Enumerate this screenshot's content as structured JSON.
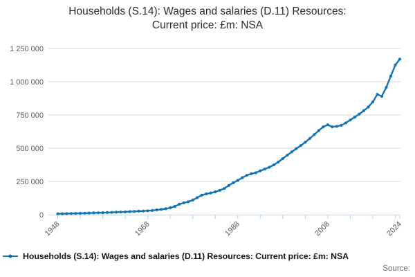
{
  "title_lines": [
    "Households (S.14): Wages and salaries (D.11) Resources:",
    "Current price: £m: NSA"
  ],
  "legend": {
    "label": "Households (S.14): Wages and salaries (D.11) Resources: Current price: £m: NSA",
    "marker": "line-dot"
  },
  "source": {
    "label": "Source:"
  },
  "colors": {
    "line": "#1274b6",
    "grid": "#d9d9d9",
    "axis": "#c2cfdd",
    "tick_label": "#595959",
    "title_text": "#2b2b2b",
    "legend_text": "#161616",
    "source_text": "#6e6e6e",
    "background": "#ffffff"
  },
  "chart_data": {
    "type": "line",
    "title": "Households (S.14): Wages and salaries (D.11) Resources: Current price: £m: NSA",
    "series_name": "Households (S.14): Wages and salaries (D.11) Resources: Current price: £m: NSA",
    "units": "£m",
    "xlabel": "",
    "ylabel": "",
    "xlim": [
      1948,
      2024
    ],
    "ylim": [
      0,
      1250000
    ],
    "grid": "horizontal",
    "legend_position": "bottom",
    "marker": "circle",
    "x": [
      1948,
      1949,
      1950,
      1951,
      1952,
      1953,
      1954,
      1955,
      1956,
      1957,
      1958,
      1959,
      1960,
      1961,
      1962,
      1963,
      1964,
      1965,
      1966,
      1967,
      1968,
      1969,
      1970,
      1971,
      1972,
      1973,
      1974,
      1975,
      1976,
      1977,
      1978,
      1979,
      1980,
      1981,
      1982,
      1983,
      1984,
      1985,
      1986,
      1987,
      1988,
      1989,
      1990,
      1991,
      1992,
      1993,
      1994,
      1995,
      1996,
      1997,
      1998,
      1999,
      2000,
      2001,
      2002,
      2003,
      2004,
      2005,
      2006,
      2007,
      2008,
      2009,
      2010,
      2011,
      2012,
      2013,
      2014,
      2015,
      2016,
      2017,
      2018,
      2019,
      2020,
      2021,
      2022,
      2023,
      2024
    ],
    "values": [
      7000,
      7500,
      8000,
      8800,
      9600,
      10400,
      11200,
      12300,
      13500,
      14400,
      15100,
      15900,
      17100,
      18500,
      19600,
      20800,
      22700,
      24600,
      26400,
      27600,
      29600,
      32000,
      35800,
      39800,
      45000,
      52000,
      62000,
      78500,
      89000,
      97000,
      110000,
      128000,
      147000,
      156000,
      163000,
      172000,
      183000,
      197000,
      220000,
      240000,
      258000,
      278000,
      296000,
      308000,
      315000,
      330000,
      343000,
      357000,
      374000,
      396000,
      422000,
      447000,
      472000,
      497000,
      520000,
      545000,
      573000,
      602000,
      633000,
      661000,
      676000,
      661000,
      664000,
      672000,
      690000,
      712000,
      734000,
      757000,
      782000,
      810000,
      848000,
      905000,
      890000,
      958000,
      1042000,
      1125000,
      1170000
    ],
    "y_ticks": [
      0,
      250000,
      500000,
      750000,
      1000000,
      1250000
    ],
    "y_tick_labels": [
      "0",
      "250 000",
      "500 000",
      "750 000",
      "1 000 000",
      "1 250 000"
    ],
    "x_minor_tick_years": [
      1948,
      1953,
      1958,
      1963,
      1968,
      1973,
      1978,
      1983,
      1988,
      1993,
      1998,
      2003,
      2008,
      2013,
      2018,
      2023,
      2024
    ],
    "x_label_years": [
      1948,
      1968,
      1988,
      2008,
      2024
    ],
    "x_label_texts": [
      "1948",
      "1968",
      "1988",
      "2008",
      "2024"
    ]
  }
}
